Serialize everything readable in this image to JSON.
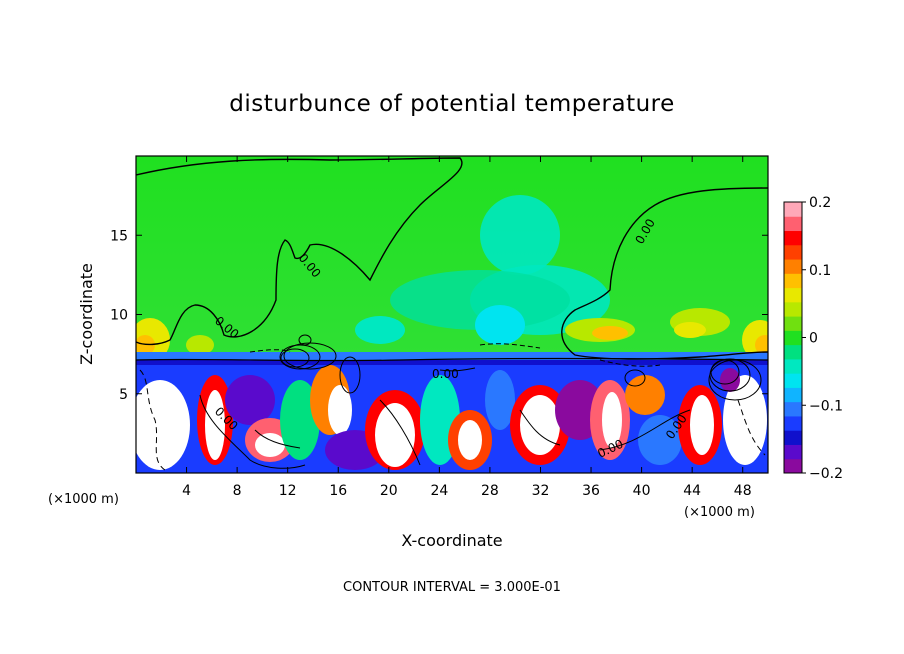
{
  "chart_data": {
    "type": "heatmap",
    "title": "disturbunce of potential temperature",
    "xlabel": "X-coordinate",
    "ylabel": "Z-coordinate",
    "x_unit": "(×1000 m)",
    "z_unit": "(×1000 m)",
    "xlim": [
      0,
      50
    ],
    "ylim": [
      0,
      20
    ],
    "x_ticks": [
      4,
      8,
      12,
      16,
      20,
      24,
      28,
      32,
      36,
      40,
      44,
      48
    ],
    "y_ticks": [
      5,
      10,
      15
    ],
    "colorbar": {
      "range": [
        -0.2,
        0.2
      ],
      "ticks": [
        {
          "value": 0.2,
          "label": "0.2"
        },
        {
          "value": 0.1,
          "label": "0.1"
        },
        {
          "value": 0,
          "label": "0"
        },
        {
          "value": -0.1,
          "label": "−0.1"
        },
        {
          "value": -0.2,
          "label": "−0.2"
        }
      ],
      "colors": [
        "#8a0a9e",
        "#5a0acc",
        "#1010cc",
        "#1a3cff",
        "#2a78ff",
        "#10b4ff",
        "#00e4f0",
        "#00e8c0",
        "#00e080",
        "#20e020",
        "#70e010",
        "#b8e800",
        "#e8e800",
        "#ffc000",
        "#ff8000",
        "#ff4000",
        "#ff0000",
        "#ff6070",
        "#ffa8b8"
      ]
    },
    "contour_interval": "CONTOUR INTERVAL = 3.000E-01",
    "contour_labels": [
      "0.00",
      "0.00",
      "0.00",
      "0.00",
      "0.00",
      "0.00",
      "0.00"
    ]
  }
}
